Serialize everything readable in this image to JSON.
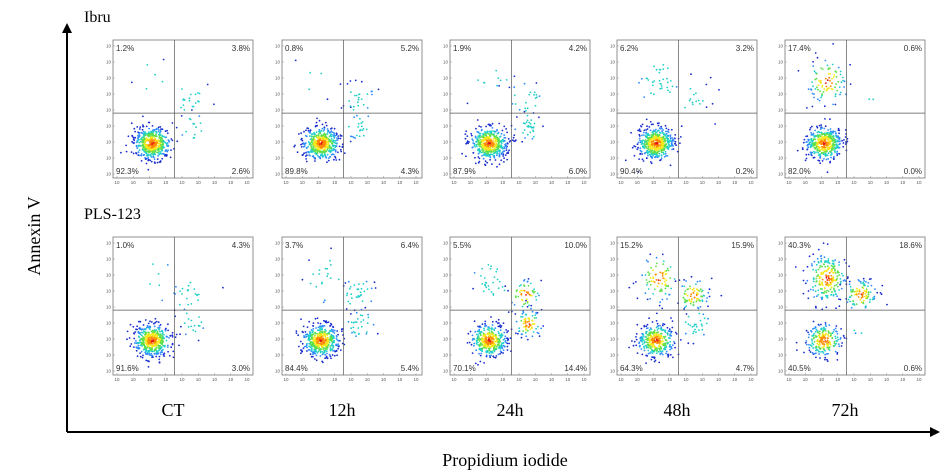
{
  "chart_data": {
    "type": "scatter",
    "title": "",
    "xlabel": "Propidium iodide",
    "ylabel": "Annexin V",
    "rows": [
      "Ibru",
      "PLS-123"
    ],
    "columns": [
      "CT",
      "12h",
      "24h",
      "48h",
      "72h"
    ],
    "tick_label": "10",
    "panels": [
      [
        {
          "ul": "1.2%",
          "ur": "3.8%",
          "ll": "92.3%",
          "lr": "2.6%"
        },
        {
          "ul": "0.8%",
          "ur": "5.2%",
          "ll": "89.8%",
          "lr": "4.3%"
        },
        {
          "ul": "1.9%",
          "ur": "4.2%",
          "ll": "87.9%",
          "lr": "6.0%"
        },
        {
          "ul": "6.2%",
          "ur": "3.2%",
          "ll": "90.4%",
          "lr": "0.2%"
        },
        {
          "ul": "17.4%",
          "ur": "0.6%",
          "ll": "82.0%",
          "lr": "0.0%"
        }
      ],
      [
        {
          "ul": "1.0%",
          "ur": "4.3%",
          "ll": "91.6%",
          "lr": "3.0%"
        },
        {
          "ul": "3.7%",
          "ur": "6.4%",
          "ll": "84.4%",
          "lr": "5.4%"
        },
        {
          "ul": "5.5%",
          "ur": "10.0%",
          "ll": "70.1%",
          "lr": "14.4%"
        },
        {
          "ul": "15.2%",
          "ur": "15.9%",
          "ll": "64.3%",
          "lr": "4.7%"
        },
        {
          "ul": "40.3%",
          "ur": "18.6%",
          "ll": "40.5%",
          "lr": "0.6%"
        }
      ]
    ],
    "density_colors": [
      "#1a2ccf",
      "#2f8cff",
      "#20d0c8",
      "#5ee04a",
      "#f6e81a",
      "#ff8a00",
      "#e0161a"
    ]
  }
}
